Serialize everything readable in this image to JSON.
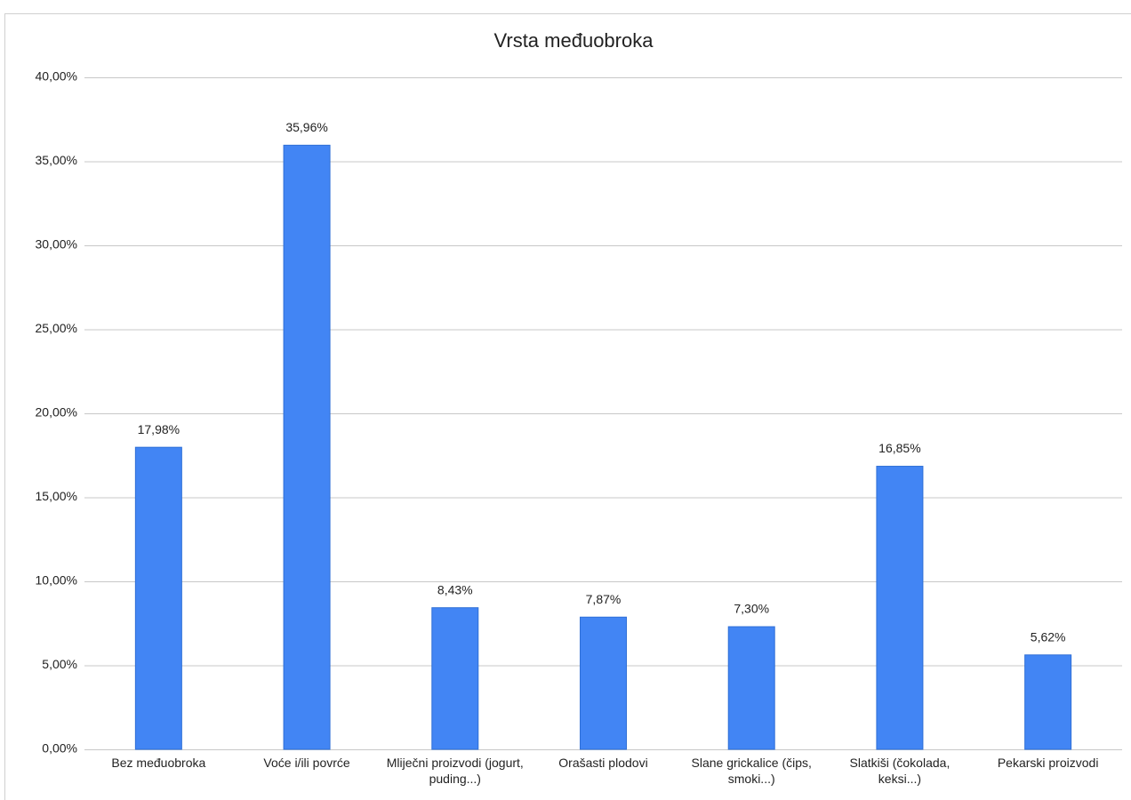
{
  "chart_data": {
    "type": "bar",
    "title": "Vrsta međuobroka",
    "categories": [
      "Bez međuobroka",
      "Voće i/ili povrće",
      "Mliječni proizvodi (jogurt, puding...)",
      "Orašasti plodovi",
      "Slane grickalice (čips, smoki...)",
      "Slatkiši (čokolada, keksi...)",
      "Pekarski proizvodi"
    ],
    "values": [
      17.98,
      35.96,
      8.43,
      7.87,
      7.3,
      16.85,
      5.62
    ],
    "value_labels": [
      "17,98%",
      "35,96%",
      "8,43%",
      "7,87%",
      "7,30%",
      "16,85%",
      "5,62%"
    ],
    "color": "#4285f4",
    "ylim": [
      0,
      40
    ],
    "yticks": [
      {
        "value": 0,
        "label": "0,00%"
      },
      {
        "value": 5,
        "label": "5,00%"
      },
      {
        "value": 10,
        "label": "10,00%"
      },
      {
        "value": 15,
        "label": "15,00%"
      },
      {
        "value": 20,
        "label": "20,00%"
      },
      {
        "value": 25,
        "label": "25,00%"
      },
      {
        "value": 30,
        "label": "30,00%"
      },
      {
        "value": 35,
        "label": "35,00%"
      },
      {
        "value": 40,
        "label": "40,00%"
      }
    ],
    "grid": true
  }
}
